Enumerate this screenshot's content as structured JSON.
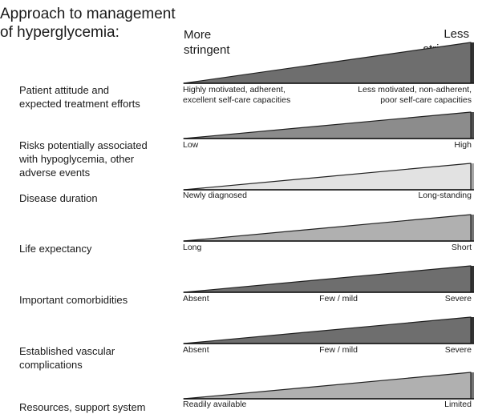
{
  "title": {
    "line1": "Approach to management",
    "line2": "of hyperglycemia:"
  },
  "header": {
    "more": [
      "More",
      "stringent"
    ],
    "less": [
      "Less",
      "stringent"
    ]
  },
  "rows": [
    {
      "name": [
        "Patient attitude and",
        "expected treatment efforts"
      ],
      "left": [
        "Highly motivated, adherent,",
        "excellent self-care capacities"
      ],
      "right": [
        "Less motivated, non-adherent,",
        "poor self-care capacities"
      ],
      "mid": "",
      "fill": "#6e6e6e"
    },
    {
      "name": [
        "Risks potentially associated",
        "with hypoglycemia, other",
        "adverse events"
      ],
      "left": [
        "Low"
      ],
      "right": [
        "High"
      ],
      "mid": "",
      "fill": "#8c8c8c"
    },
    {
      "name": [
        "Disease duration"
      ],
      "left": [
        "Newly diagnosed"
      ],
      "right": [
        "Long-standing"
      ],
      "mid": "",
      "fill": "#e2e2e2"
    },
    {
      "name": [
        "Life expectancy"
      ],
      "left": [
        "Long"
      ],
      "right": [
        "Short"
      ],
      "mid": "",
      "fill": "#b0b0b0"
    },
    {
      "name": [
        "Important comorbidities"
      ],
      "left": [
        "Absent"
      ],
      "right": [
        "Severe"
      ],
      "mid": "Few / mild",
      "fill": "#6e6e6e"
    },
    {
      "name": [
        "Established vascular",
        "complications"
      ],
      "left": [
        "Absent"
      ],
      "right": [
        "Severe"
      ],
      "mid": "Few / mild",
      "fill": "#6e6e6e"
    },
    {
      "name": [
        "Resources, support system"
      ],
      "left": [
        "Readily available"
      ],
      "right": [
        "Limited"
      ],
      "mid": "",
      "fill": "#b0b0b0"
    }
  ]
}
